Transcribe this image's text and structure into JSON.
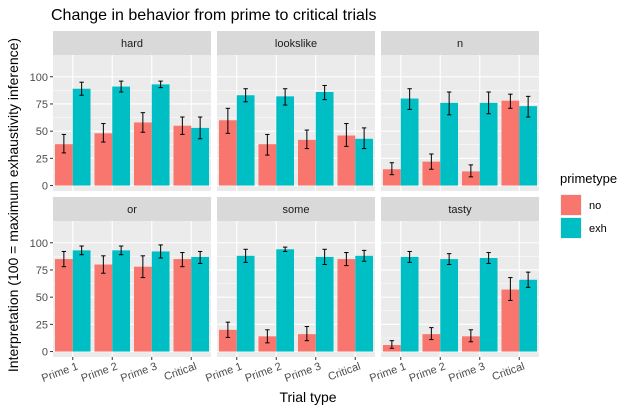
{
  "chart_data": {
    "type": "bar",
    "title": "Change in behavior from prime to critical trials",
    "xlabel": "Trial type",
    "ylabel": "Interpretation (100 = maximum exhaustivity inference)",
    "ylim": [
      -5,
      120
    ],
    "yticks": [
      0,
      25,
      50,
      75,
      100
    ],
    "ytick_labels": [
      "0",
      "25",
      "50",
      "75",
      "100"
    ],
    "categories": [
      "Prime 1",
      "Prime 2",
      "Prime 3",
      "Critical"
    ],
    "legend": {
      "title": "primetype",
      "position": "right",
      "entries": [
        {
          "name": "no",
          "color": "#F8766D"
        },
        {
          "name": "exh",
          "color": "#00BFC4"
        }
      ]
    },
    "panel_background": "#EBEBEB",
    "strip_background": "#D9D9D9",
    "grid": true,
    "panels": [
      {
        "label": "hard",
        "series": [
          {
            "name": "no",
            "values": [
              38,
              48,
              58,
              55
            ],
            "error": [
              [
                30,
                47
              ],
              [
                40,
                57
              ],
              [
                49,
                67
              ],
              [
                47,
                63
              ]
            ]
          },
          {
            "name": "exh",
            "values": [
              89,
              91,
              93,
              53
            ],
            "error": [
              [
                83,
                95
              ],
              [
                86,
                96
              ],
              [
                90,
                96
              ],
              [
                43,
                63
              ]
            ]
          }
        ]
      },
      {
        "label": "lookslike",
        "series": [
          {
            "name": "no",
            "values": [
              60,
              38,
              42,
              46
            ],
            "error": [
              [
                48,
                71
              ],
              [
                28,
                47
              ],
              [
                34,
                51
              ],
              [
                36,
                57
              ]
            ]
          },
          {
            "name": "exh",
            "values": [
              83,
              82,
              86,
              43
            ],
            "error": [
              [
                77,
                89
              ],
              [
                74,
                89
              ],
              [
                79,
                92
              ],
              [
                34,
                53
              ]
            ]
          }
        ]
      },
      {
        "label": "n",
        "series": [
          {
            "name": "no",
            "values": [
              15,
              22,
              13,
              78
            ],
            "error": [
              [
                10,
                21
              ],
              [
                15,
                29
              ],
              [
                8,
                19
              ],
              [
                71,
                84
              ]
            ]
          },
          {
            "name": "exh",
            "values": [
              80,
              76,
              76,
              73
            ],
            "error": [
              [
                70,
                89
              ],
              [
                65,
                86
              ],
              [
                66,
                86
              ],
              [
                63,
                82
              ]
            ]
          }
        ]
      },
      {
        "label": "or",
        "series": [
          {
            "name": "no",
            "values": [
              85,
              80,
              78,
              85
            ],
            "error": [
              [
                78,
                92
              ],
              [
                72,
                88
              ],
              [
                68,
                88
              ],
              [
                78,
                91
              ]
            ]
          },
          {
            "name": "exh",
            "values": [
              93,
              93,
              92,
              87
            ],
            "error": [
              [
                89,
                97
              ],
              [
                89,
                97
              ],
              [
                86,
                98
              ],
              [
                81,
                92
              ]
            ]
          }
        ]
      },
      {
        "label": "some",
        "series": [
          {
            "name": "no",
            "values": [
              20,
              14,
              16,
              85
            ],
            "error": [
              [
                13,
                27
              ],
              [
                8,
                20
              ],
              [
                10,
                23
              ],
              [
                79,
                91
              ]
            ]
          },
          {
            "name": "exh",
            "values": [
              88,
              94,
              87,
              88
            ],
            "error": [
              [
                82,
                94
              ],
              [
                92,
                96
              ],
              [
                80,
                94
              ],
              [
                83,
                93
              ]
            ]
          }
        ]
      },
      {
        "label": "tasty",
        "series": [
          {
            "name": "no",
            "values": [
              6,
              16,
              14,
              57
            ],
            "error": [
              [
                3,
                10
              ],
              [
                11,
                22
              ],
              [
                9,
                20
              ],
              [
                47,
                68
              ]
            ]
          },
          {
            "name": "exh",
            "values": [
              87,
              85,
              86,
              66
            ],
            "error": [
              [
                82,
                92
              ],
              [
                80,
                90
              ],
              [
                81,
                91
              ],
              [
                59,
                73
              ]
            ]
          }
        ]
      }
    ]
  }
}
